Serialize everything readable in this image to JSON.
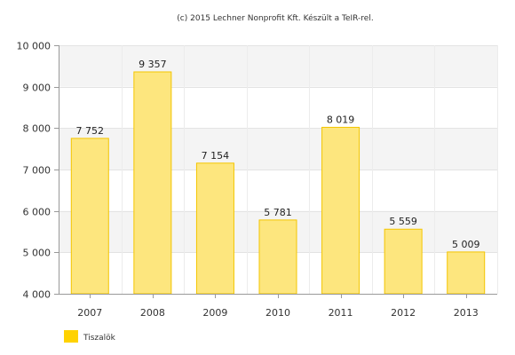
{
  "credit": "(c) 2015 Lechner Nonprofit Kft. Készült a TeIR-rel.",
  "chart_data": {
    "type": "bar",
    "title": "",
    "xlabel": "",
    "ylabel": "",
    "categories": [
      "2007",
      "2008",
      "2009",
      "2010",
      "2011",
      "2012",
      "2013"
    ],
    "series": [
      {
        "name": "Tiszalök",
        "values": [
          7752,
          9357,
          7154,
          5781,
          8019,
          5559,
          5009
        ],
        "color": "#fde67e",
        "border": "#f3c500"
      }
    ],
    "value_labels": [
      "7 752",
      "9 357",
      "7 154",
      "5 781",
      "8 019",
      "5 559",
      "5 009"
    ],
    "ylim": [
      4000,
      10000
    ],
    "yticks": [
      4000,
      5000,
      6000,
      7000,
      8000,
      9000,
      10000
    ],
    "ytick_labels": [
      "4 000",
      "5 000",
      "6 000",
      "7 000",
      "8 000",
      "9 000",
      "10 000"
    ],
    "grid": true,
    "alternating_bands": true,
    "legend_position": "bottom-left",
    "legend_swatch_color": "#ffd200"
  }
}
